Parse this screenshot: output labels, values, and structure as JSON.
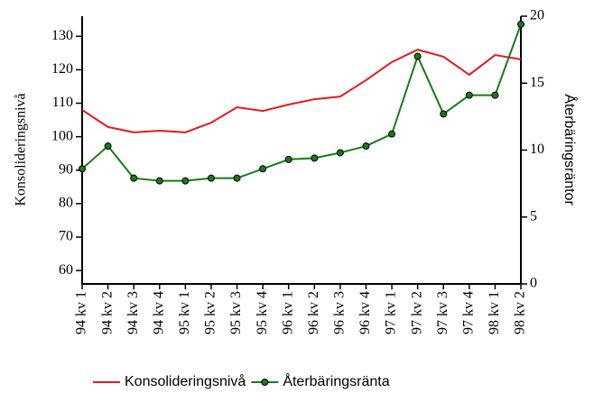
{
  "chart_data": {
    "type": "line",
    "categories": [
      "94 kv 1",
      "94 kv 2",
      "94 kv 3",
      "94 kv 4",
      "95 kv 1",
      "95 kv 2",
      "95 kv 3",
      "95 kv 4",
      "96 kv 1",
      "96 kv 2",
      "96 kv 3",
      "96 kv 4",
      "97 kv 1",
      "97 kv 2",
      "97 kv 3",
      "97 kv 4",
      "98 kv 1",
      "98 kv 2"
    ],
    "ylabel": "Konsolideringsnivå",
    "y2label": "Återbäringsräntor",
    "ylim": [
      56,
      136
    ],
    "yticks": [
      60,
      70,
      80,
      90,
      100,
      110,
      120,
      130
    ],
    "y2lim": [
      0,
      20
    ],
    "y2ticks": [
      0,
      5,
      10,
      15,
      20
    ],
    "legend": "bottom",
    "series": [
      {
        "name": "Konsolideringsnivå",
        "color": "#e31a1c",
        "values": [
          108.0,
          102.9,
          101.3,
          101.8,
          101.3,
          104.2,
          108.8,
          107.7,
          109.6,
          111.2,
          112.0,
          116.9,
          122.3,
          126.0,
          123.9,
          118.5,
          124.4,
          123.1
        ]
      },
      {
        "name": "Återbäringsränta",
        "color": "#1a7a1a",
        "axis": "y2",
        "markers": true,
        "values": [
          8.6,
          10.3,
          7.9,
          7.7,
          7.7,
          7.9,
          7.9,
          8.6,
          9.3,
          9.4,
          9.8,
          10.3,
          11.2,
          17.0,
          12.7,
          14.1,
          14.1,
          19.4
        ]
      }
    ]
  }
}
